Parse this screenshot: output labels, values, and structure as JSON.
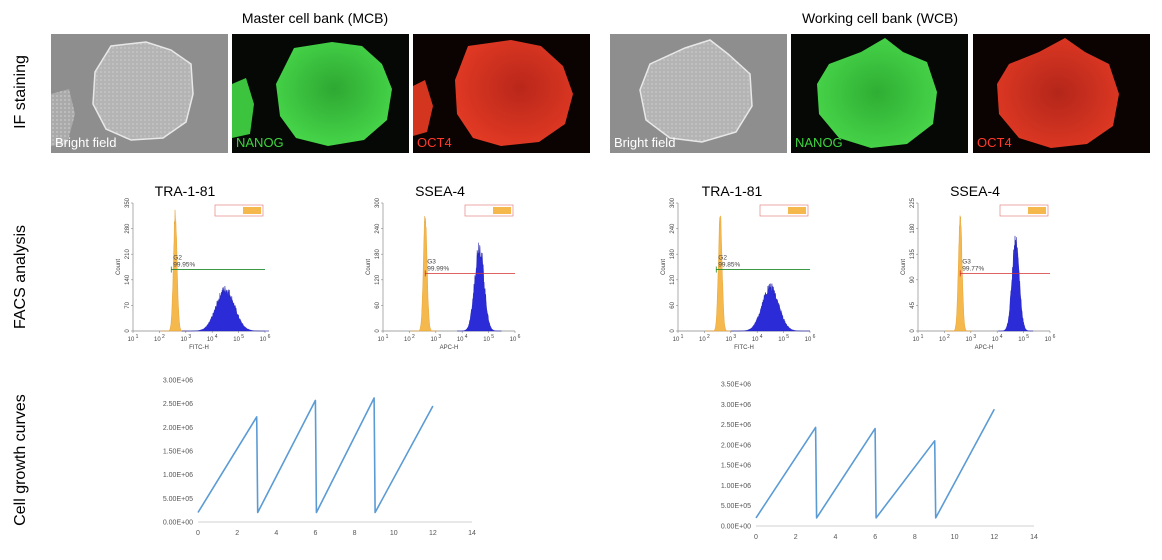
{
  "row_labels": {
    "if": "IF staining",
    "facs": "FACS analysis",
    "growth": "Cell growth curves"
  },
  "banks": [
    {
      "title": "Master cell bank (MCB)"
    },
    {
      "title": "Working cell bank (WCB)"
    }
  ],
  "if_tiles": [
    "Bright field",
    "NANOG",
    "OCT4"
  ],
  "if_colors": {
    "bright": "#9a9a9a",
    "nanog": "#35c63a",
    "oct4": "#d8321d",
    "label_white": "#ffffff",
    "label_green": "#3fd43f",
    "label_red": "#ff3a2a"
  },
  "facs_colors": {
    "isotype": "#f5b84c",
    "stained": "#2b2cd8",
    "gate_green": "#1f8a2a",
    "gate_red": "#d43030"
  },
  "facs_panels": [
    {
      "bank": "MCB",
      "title": "TRA-1-81",
      "gate": "G2",
      "percent": "99.95%",
      "xlabel": "FITC-H",
      "ylabel": "Count",
      "yticks": [
        "0",
        "70",
        "140",
        "210",
        "280",
        "350"
      ]
    },
    {
      "bank": "MCB",
      "title": "SSEA-4",
      "gate": "G3",
      "percent": "99.99%",
      "xlabel": "APC-H",
      "ylabel": "Count",
      "yticks": [
        "0",
        "60",
        "120",
        "180",
        "240",
        "300"
      ]
    },
    {
      "bank": "WCB",
      "title": "TRA-1-81",
      "gate": "G2",
      "percent": "99.85%",
      "xlabel": "FITC-H",
      "ylabel": "Count",
      "yticks": [
        "0",
        "60",
        "120",
        "180",
        "240",
        "300"
      ]
    },
    {
      "bank": "WCB",
      "title": "SSEA-4",
      "gate": "G3",
      "percent": "99.77%",
      "xlabel": "APC-H",
      "ylabel": "Count",
      "yticks": [
        "0",
        "45",
        "90",
        "135",
        "180",
        "225"
      ]
    }
  ],
  "facs_xticks": [
    "10",
    "10",
    "10",
    "10",
    "10",
    "10"
  ],
  "facs_xexp": [
    "1",
    "2",
    "3",
    "4",
    "5",
    "6"
  ],
  "chart_data": [
    {
      "type": "line",
      "bank": "MCB",
      "x": [
        0,
        3,
        3.05,
        6,
        6.05,
        9,
        9.05,
        12
      ],
      "y": [
        200000,
        2220000,
        200000,
        2570000,
        200000,
        2620000,
        200000,
        2450000
      ],
      "xlim": [
        0,
        14
      ],
      "ylim": [
        0,
        3000000
      ],
      "xticks": [
        "0",
        "2",
        "4",
        "6",
        "8",
        "10",
        "12",
        "14"
      ],
      "yticks": [
        "0.00E+00",
        "5.00E+05",
        "1.00E+06",
        "1.50E+06",
        "2.00E+06",
        "2.50E+06",
        "3.00E+06"
      ],
      "color": "#5b9bd5"
    },
    {
      "type": "line",
      "bank": "WCB",
      "x": [
        0,
        3,
        3.05,
        6,
        6.05,
        9,
        9.05,
        12
      ],
      "y": [
        200000,
        2430000,
        200000,
        2400000,
        200000,
        2100000,
        200000,
        2880000
      ],
      "xlim": [
        0,
        14
      ],
      "ylim": [
        0,
        3500000
      ],
      "xticks": [
        "0",
        "2",
        "4",
        "6",
        "8",
        "10",
        "12",
        "14"
      ],
      "yticks": [
        "0.00E+00",
        "5.00E+05",
        "1.00E+06",
        "1.50E+06",
        "2.00E+06",
        "2.50E+06",
        "3.00E+06",
        "3.50E+06"
      ],
      "color": "#5b9bd5"
    }
  ]
}
